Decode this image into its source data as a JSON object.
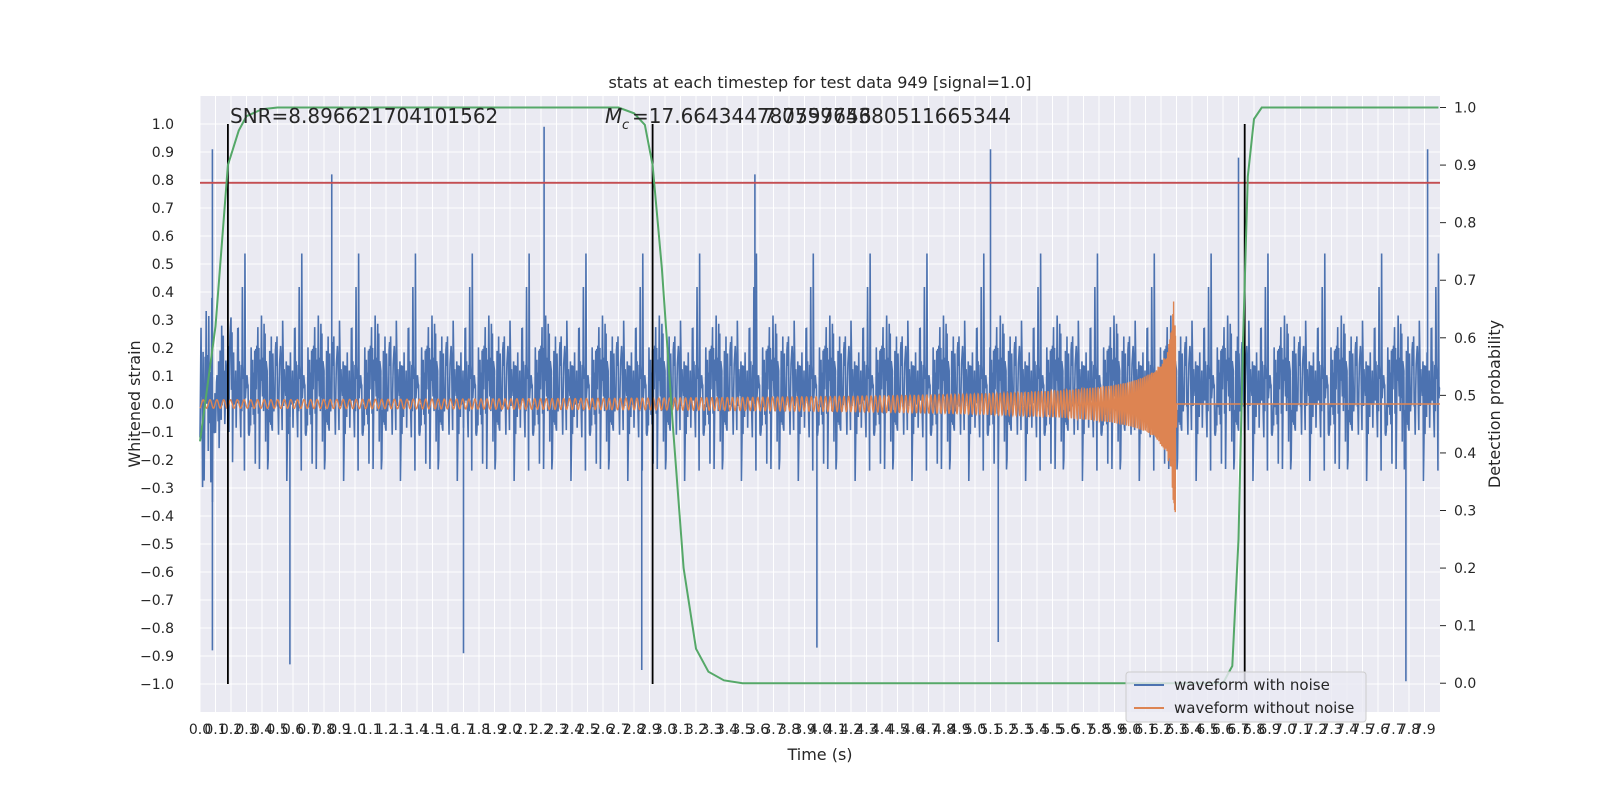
{
  "chart_data": {
    "type": "line",
    "title": "stats at each timestep for test data 949 [signal=1.0]",
    "xlabel": "Time (s)",
    "ylabel": "Whitened strain",
    "y2label": "Detection probability",
    "xlim": [
      0.0,
      8.0
    ],
    "ylim": [
      -1.1,
      1.1
    ],
    "y2lim": [
      -0.05,
      1.02
    ],
    "grid": true,
    "legend_position": "lower-right",
    "x_ticks": [
      "0.0",
      "0.1",
      "0.2",
      "0.3",
      "0.4",
      "0.5",
      "0.6",
      "0.7",
      "0.8",
      "0.9",
      "1.0",
      "1.1",
      "1.2",
      "1.3",
      "1.4",
      "1.5",
      "1.6",
      "1.7",
      "1.8",
      "1.9",
      "2.0",
      "2.1",
      "2.2",
      "2.3",
      "2.4",
      "2.5",
      "2.6",
      "2.7",
      "2.8",
      "2.9",
      "3.0",
      "3.1",
      "3.2",
      "3.3",
      "3.4",
      "3.5",
      "3.6",
      "3.7",
      "3.8",
      "3.9",
      "4.0",
      "4.1",
      "4.2",
      "4.3",
      "4.4",
      "4.5",
      "4.6",
      "4.7",
      "4.8",
      "4.9",
      "5.0",
      "5.1",
      "5.2",
      "5.3",
      "5.4",
      "5.5",
      "5.6",
      "5.7",
      "5.8",
      "5.9",
      "6.0",
      "6.1",
      "6.2",
      "6.3",
      "6.4",
      "6.5",
      "6.6",
      "6.7",
      "6.8",
      "6.9",
      "7.0",
      "7.1",
      "7.2",
      "7.3",
      "7.4",
      "7.5",
      "7.6",
      "7.7",
      "7.8",
      "7.9"
    ],
    "y_ticks": [
      "1.0",
      "0.9",
      "0.8",
      "0.7",
      "0.6",
      "0.5",
      "0.4",
      "0.3",
      "0.2",
      "0.1",
      "0.0",
      "−0.1",
      "−0.2",
      "−0.3",
      "−0.4",
      "−0.5",
      "−0.6",
      "−0.7",
      "−0.8",
      "−0.9",
      "−1.0"
    ],
    "y2_ticks": [
      "1.0",
      "0.9",
      "0.8",
      "0.7",
      "0.6",
      "0.5",
      "0.4",
      "0.3",
      "0.2",
      "0.1",
      "0.0"
    ],
    "annotations": {
      "snr": "SNR=8.896621704101562",
      "mc": "=17.664344787597656",
      "mc_symbol": "M",
      "mc_subscript": "c",
      "overlap": "7.075974380511665344"
    },
    "threshold_y": 0.79,
    "vertical_markers_x": [
      0.18,
      2.92,
      6.74
    ],
    "series": [
      {
        "name": "waveform with noise",
        "color": "#4c72b0",
        "envelope_abs_typical": 0.4,
        "peak_values": [
          {
            "x": 0.08,
            "y": 0.91
          },
          {
            "x": 0.08,
            "y": -0.88
          },
          {
            "x": 0.58,
            "y": -0.93
          },
          {
            "x": 0.85,
            "y": 0.82
          },
          {
            "x": 1.7,
            "y": -0.89
          },
          {
            "x": 2.22,
            "y": 0.99
          },
          {
            "x": 2.85,
            "y": -0.95
          },
          {
            "x": 3.58,
            "y": 0.82
          },
          {
            "x": 3.98,
            "y": -0.87
          },
          {
            "x": 5.1,
            "y": 0.91
          },
          {
            "x": 5.15,
            "y": -0.85
          },
          {
            "x": 6.7,
            "y": 0.88
          },
          {
            "x": 7.78,
            "y": -0.99
          },
          {
            "x": 7.92,
            "y": 0.91
          }
        ]
      },
      {
        "name": "waveform without noise",
        "color": "#dd8452",
        "chirp_start_x": 0.0,
        "chirp_merger_x": 6.3,
        "chirp_peak_amplitude_max": 0.39,
        "chirp_peak_amplitude_min": -0.47,
        "chirp_early_amplitude": 0.015
      },
      {
        "color": "#55a868",
        "axis": "right",
        "points": [
          [
            0.0,
            0.42
          ],
          [
            0.1,
            0.62
          ],
          [
            0.18,
            0.9
          ],
          [
            0.25,
            0.96
          ],
          [
            0.3,
            0.985
          ],
          [
            0.4,
            0.997
          ],
          [
            0.5,
            1.0
          ],
          [
            2.7,
            1.0
          ],
          [
            2.8,
            0.99
          ],
          [
            2.87,
            0.97
          ],
          [
            2.92,
            0.9
          ],
          [
            2.98,
            0.72
          ],
          [
            3.05,
            0.45
          ],
          [
            3.12,
            0.2
          ],
          [
            3.2,
            0.06
          ],
          [
            3.28,
            0.02
          ],
          [
            3.38,
            0.005
          ],
          [
            3.5,
            0.0
          ],
          [
            6.6,
            0.0
          ],
          [
            6.66,
            0.03
          ],
          [
            6.7,
            0.25
          ],
          [
            6.73,
            0.6
          ],
          [
            6.76,
            0.88
          ],
          [
            6.8,
            0.98
          ],
          [
            6.85,
            1.0
          ],
          [
            7.99,
            1.0
          ]
        ]
      }
    ]
  }
}
